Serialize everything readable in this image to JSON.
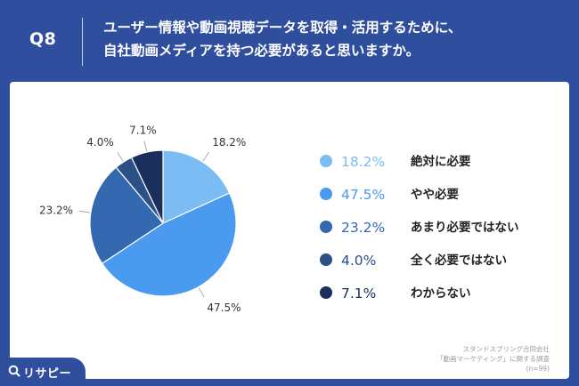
{
  "header": {
    "q_number": "Q8",
    "question_line1": "ユーザー情報や動画視聴データを取得・活用するために、",
    "question_line2": "自社動画メディアを持つ必要があると思いますか。"
  },
  "chart_data": {
    "type": "pie",
    "title": "",
    "categories": [
      "絶対に必要",
      "やや必要",
      "あまり必要ではない",
      "全く必要ではない",
      "わからない"
    ],
    "values": [
      18.2,
      47.5,
      23.2,
      4.0,
      7.1
    ],
    "labels": [
      "18.2%",
      "47.5%",
      "23.2%",
      "4.0%",
      "7.1%"
    ],
    "colors": [
      "#7bbcf5",
      "#4a9af0",
      "#3468b0",
      "#2b4f86",
      "#1a2f5c"
    ],
    "start": "12 o'clock",
    "direction": "clockwise",
    "legend_position": "right"
  },
  "source": {
    "line1": "スタンドスプリング合同会社",
    "line2": "「動画マーケティング」に関する調査",
    "line3": "(n=99)"
  },
  "logo": {
    "text": "リサピー",
    "icon": "search-q-icon"
  }
}
